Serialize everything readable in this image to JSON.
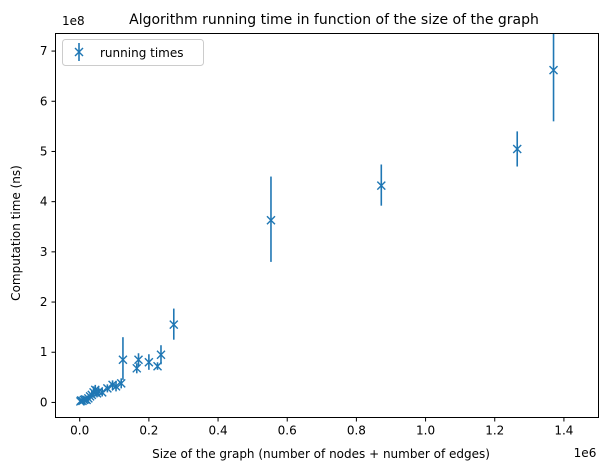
{
  "chart_data": {
    "type": "scatter",
    "title": "Algorithm running time in function of the size of the graph",
    "xlabel": "Size of the graph (number of nodes + number of edges)",
    "ylabel": "Computation time (ns)",
    "x_scale_label": "1e6",
    "y_scale_label": "1e8",
    "x_scale": 1000000,
    "y_scale": 100000000,
    "xlim": [
      -0.07,
      1.5
    ],
    "ylim": [
      -0.3,
      7.35
    ],
    "x_ticks": [
      0.0,
      0.2,
      0.4,
      0.6,
      0.8,
      1.0,
      1.2,
      1.4
    ],
    "x_tick_labels": [
      "0.0",
      "0.2",
      "0.4",
      "0.6",
      "0.8",
      "1.0",
      "1.2",
      "1.4"
    ],
    "y_ticks": [
      0,
      1,
      2,
      3,
      4,
      5,
      6,
      7
    ],
    "y_tick_labels": [
      "0",
      "1",
      "2",
      "3",
      "4",
      "5",
      "6",
      "7"
    ],
    "grid": false,
    "legend": {
      "position": "top-left",
      "entries": [
        "running times"
      ]
    },
    "color": "#1f77b4",
    "series": [
      {
        "name": "running times",
        "marker": "x",
        "points": [
          {
            "x": 0.002,
            "y": 0.02,
            "lo": 0.0,
            "hi": 0.05
          },
          {
            "x": 0.004,
            "y": 0.04,
            "lo": 0.0,
            "hi": 0.08
          },
          {
            "x": 0.008,
            "y": 0.03,
            "lo": 0.0,
            "hi": 0.07
          },
          {
            "x": 0.012,
            "y": 0.05,
            "lo": 0.01,
            "hi": 0.09
          },
          {
            "x": 0.016,
            "y": 0.06,
            "lo": 0.02,
            "hi": 0.11
          },
          {
            "x": 0.02,
            "y": 0.05,
            "lo": 0.01,
            "hi": 0.1
          },
          {
            "x": 0.025,
            "y": 0.08,
            "lo": 0.03,
            "hi": 0.14
          },
          {
            "x": 0.03,
            "y": 0.12,
            "lo": 0.06,
            "hi": 0.18
          },
          {
            "x": 0.035,
            "y": 0.15,
            "lo": 0.08,
            "hi": 0.24
          },
          {
            "x": 0.04,
            "y": 0.2,
            "lo": 0.1,
            "hi": 0.32
          },
          {
            "x": 0.045,
            "y": 0.25,
            "lo": 0.12,
            "hi": 0.35
          },
          {
            "x": 0.05,
            "y": 0.18,
            "lo": 0.1,
            "hi": 0.28
          },
          {
            "x": 0.055,
            "y": 0.22,
            "lo": 0.14,
            "hi": 0.3
          },
          {
            "x": 0.065,
            "y": 0.2,
            "lo": 0.12,
            "hi": 0.28
          },
          {
            "x": 0.08,
            "y": 0.28,
            "lo": 0.2,
            "hi": 0.36
          },
          {
            "x": 0.095,
            "y": 0.35,
            "lo": 0.25,
            "hi": 0.44
          },
          {
            "x": 0.105,
            "y": 0.32,
            "lo": 0.22,
            "hi": 0.42
          },
          {
            "x": 0.12,
            "y": 0.38,
            "lo": 0.28,
            "hi": 0.48
          },
          {
            "x": 0.125,
            "y": 0.85,
            "lo": 0.45,
            "hi": 1.3
          },
          {
            "x": 0.165,
            "y": 0.68,
            "lo": 0.58,
            "hi": 0.78
          },
          {
            "x": 0.17,
            "y": 0.85,
            "lo": 0.72,
            "hi": 0.98
          },
          {
            "x": 0.2,
            "y": 0.8,
            "lo": 0.65,
            "hi": 0.96
          },
          {
            "x": 0.225,
            "y": 0.72,
            "lo": 0.65,
            "hi": 0.8
          },
          {
            "x": 0.235,
            "y": 0.95,
            "lo": 0.76,
            "hi": 1.14
          },
          {
            "x": 0.272,
            "y": 1.55,
            "lo": 1.25,
            "hi": 1.87
          },
          {
            "x": 0.553,
            "y": 3.63,
            "lo": 2.8,
            "hi": 4.5
          },
          {
            "x": 0.872,
            "y": 4.32,
            "lo": 3.92,
            "hi": 4.74
          },
          {
            "x": 1.265,
            "y": 5.05,
            "lo": 4.7,
            "hi": 5.4
          },
          {
            "x": 1.37,
            "y": 6.62,
            "lo": 5.6,
            "hi": 7.35
          }
        ]
      }
    ]
  }
}
